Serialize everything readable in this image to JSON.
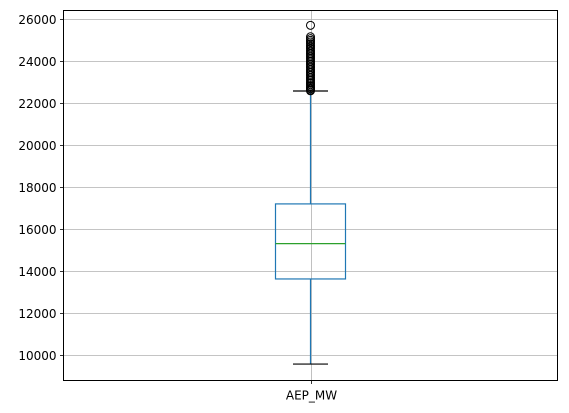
{
  "chart_data": {
    "type": "box",
    "categories": [
      "AEP_MW"
    ],
    "ylim": [
      8800,
      26400
    ],
    "yticks": [
      10000,
      12000,
      14000,
      16000,
      18000,
      20000,
      22000,
      24000,
      26000
    ],
    "grid": true,
    "boxes": [
      {
        "name": "AEP_MW",
        "whisker_low": 9581,
        "q1": 13630,
        "median": 15310,
        "q3": 17200,
        "whisker_high": 22570,
        "outliers": [
          22580,
          22620,
          22680,
          22740,
          22800,
          22870,
          22940,
          23000,
          23080,
          23150,
          23220,
          23300,
          23370,
          23450,
          23520,
          23600,
          23680,
          23750,
          23830,
          23900,
          23980,
          24050,
          24130,
          24200,
          24280,
          24350,
          24430,
          24500,
          24580,
          24660,
          24740,
          24820,
          24900,
          24980,
          25060,
          25150,
          25695
        ]
      }
    ],
    "colors": {
      "box": "#1f77b4",
      "median": "#2ca02c",
      "whisker": "#1f77b4",
      "cap": "#000000",
      "grid": "#b0b0b0"
    }
  }
}
